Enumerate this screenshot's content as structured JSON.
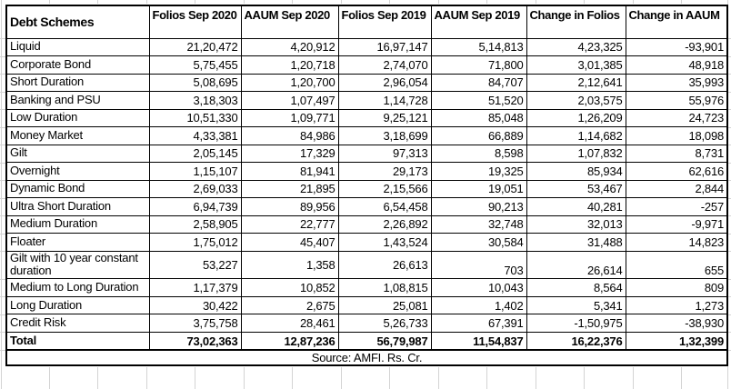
{
  "sheet": {
    "columns": [
      "Debt Schemes",
      "Folios Sep 2020",
      "AAUM Sep 2020",
      "Folios Sep 2019",
      "AAUM Sep 2019",
      "Change in Folios",
      "Change in AAUM"
    ],
    "rows": [
      [
        "Liquid",
        "21,20,472",
        "4,20,912",
        "16,97,147",
        "5,14,813",
        "4,23,325",
        "-93,901"
      ],
      [
        "Corporate Bond",
        "5,75,455",
        "1,20,718",
        "2,74,070",
        "71,800",
        "3,01,385",
        "48,918"
      ],
      [
        "Short Duration",
        "5,08,695",
        "1,20,700",
        "2,96,054",
        "84,707",
        "2,12,641",
        "35,993"
      ],
      [
        "Banking and PSU",
        "3,18,303",
        "1,07,497",
        "1,14,728",
        "51,520",
        "2,03,575",
        "55,976"
      ],
      [
        "Low Duration",
        "10,51,330",
        "1,09,771",
        "9,25,121",
        "85,048",
        "1,26,209",
        "24,723"
      ],
      [
        "Money Market",
        "4,33,381",
        "84,986",
        "3,18,699",
        "66,889",
        "1,14,682",
        "18,098"
      ],
      [
        "Gilt",
        "2,05,145",
        "17,329",
        "97,313",
        "8,598",
        "1,07,832",
        "8,731"
      ],
      [
        "Overnight",
        "1,15,107",
        "81,941",
        "29,173",
        "19,325",
        "85,934",
        "62,616"
      ],
      [
        "Dynamic Bond",
        "2,69,033",
        "21,895",
        "2,15,566",
        "19,051",
        "53,467",
        "2,844"
      ],
      [
        "Ultra Short Duration",
        "6,94,739",
        "89,956",
        "6,54,458",
        "90,213",
        "40,281",
        "-257"
      ],
      [
        "Medium Duration",
        "2,58,905",
        "22,777",
        "2,26,892",
        "32,748",
        "32,013",
        "-9,971"
      ],
      [
        "Floater",
        "1,75,012",
        "45,407",
        "1,43,524",
        "30,584",
        "31,488",
        "14,823"
      ],
      [
        "Gilt with 10 year constant duration",
        "53,227",
        "1,358",
        "26,613",
        "703",
        "26,614",
        "655"
      ],
      [
        "Medium to Long Duration",
        "1,17,379",
        "10,852",
        "1,08,815",
        "10,043",
        "8,564",
        "809"
      ],
      [
        "Long Duration",
        "30,422",
        "2,675",
        "25,081",
        "1,402",
        "5,341",
        "1,273"
      ],
      [
        "Credit Risk",
        "3,75,758",
        "28,461",
        "5,26,733",
        "67,391",
        "-1,50,975",
        "-38,930"
      ]
    ],
    "tall_row_index": 12,
    "total": [
      "Total",
      "73,02,363",
      "12,87,236",
      "56,79,987",
      "11,54,837",
      "16,22,376",
      "1,32,399"
    ],
    "footer_note": "Source: AMFI. Rs. Cr.",
    "gridline_color": "#d4d4d4",
    "border_color": "#000000"
  }
}
